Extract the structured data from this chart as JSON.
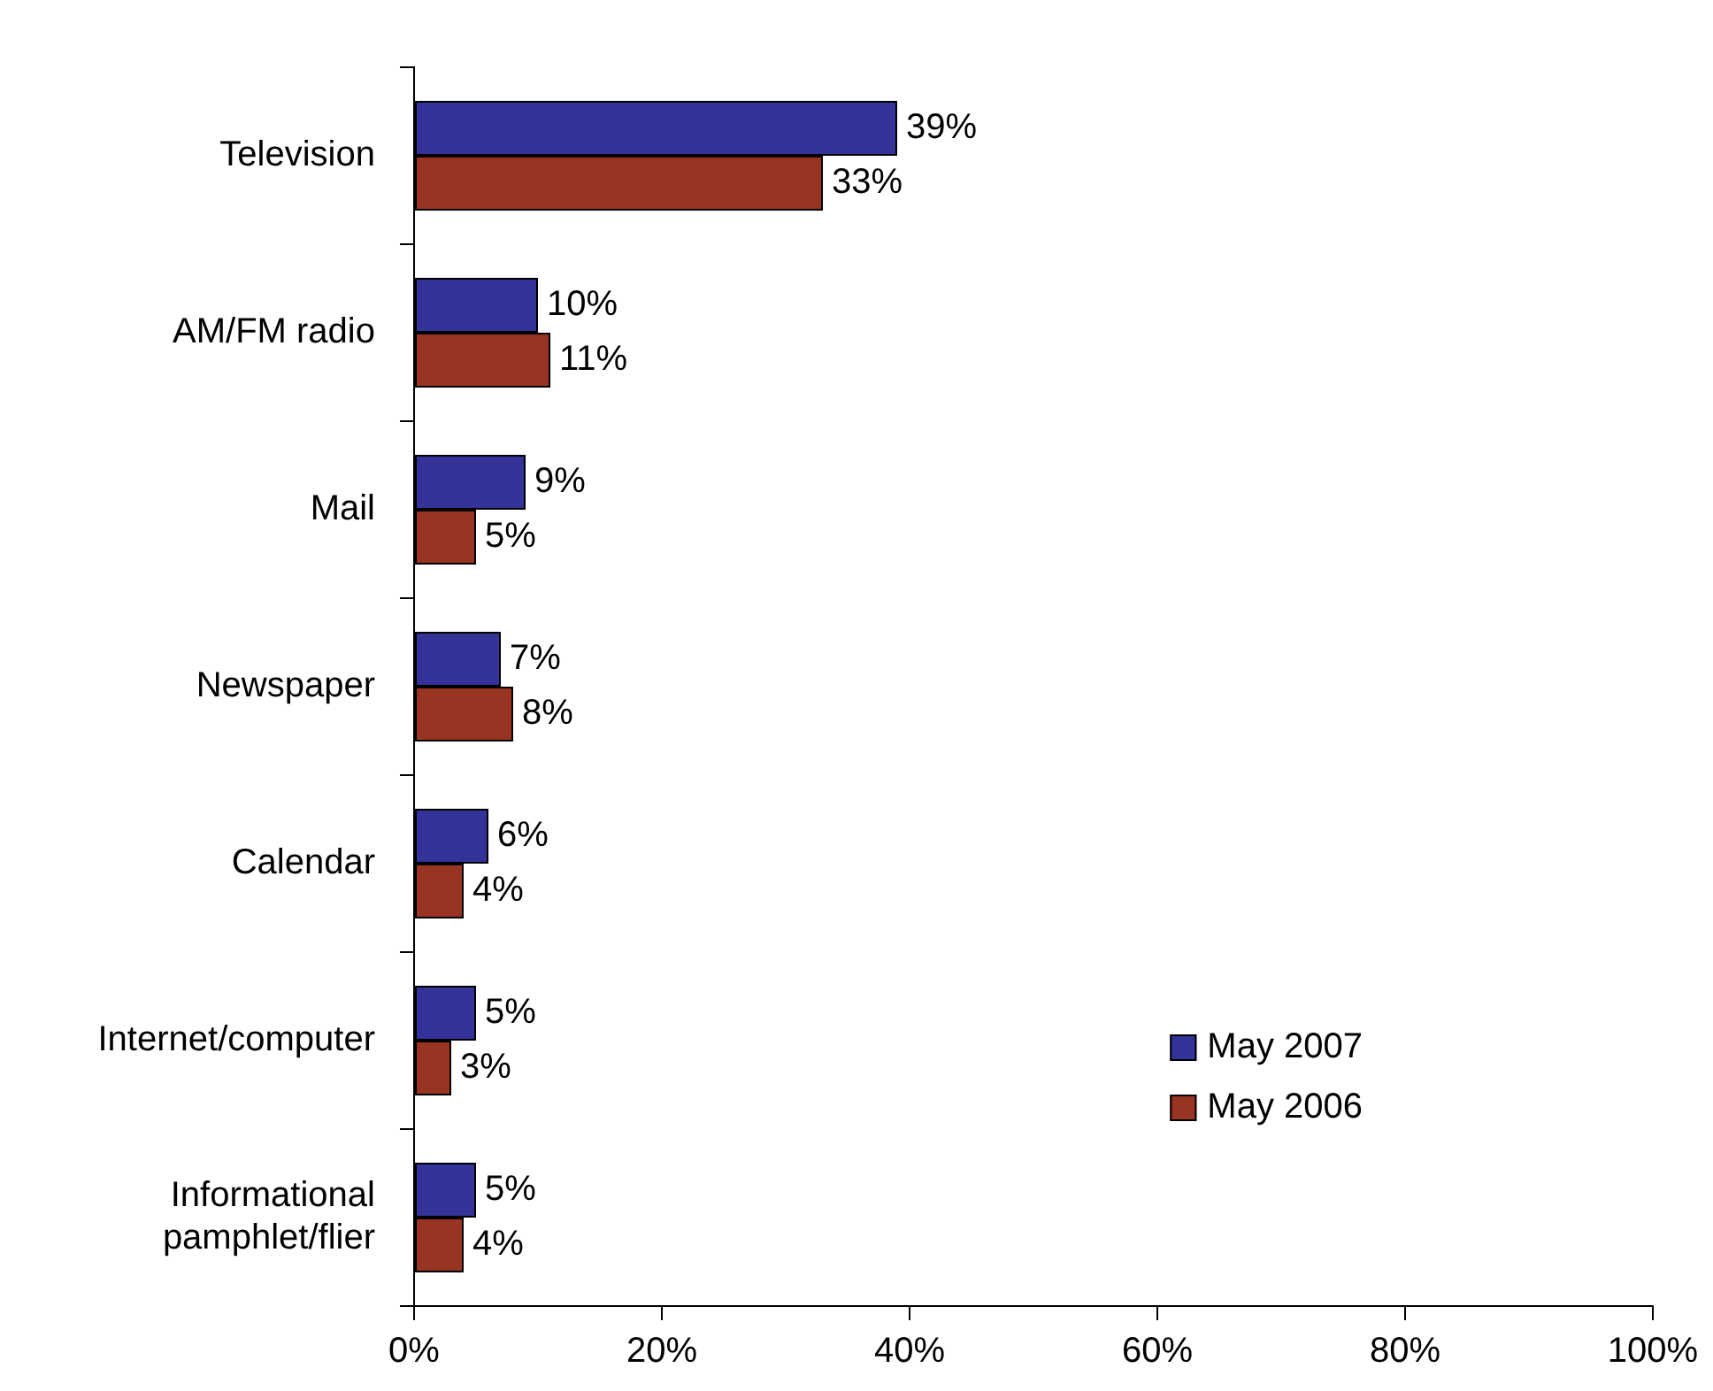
{
  "chart_data": {
    "type": "bar",
    "orientation": "horizontal",
    "categories": [
      "Television",
      "AM/FM radio",
      "Mail",
      "Newspaper",
      "Calendar",
      "Internet/computer",
      "Informational pamphlet/flier"
    ],
    "series": [
      {
        "name": "May 2007",
        "color": "#333399",
        "values": [
          39,
          10,
          9,
          7,
          6,
          5,
          5
        ],
        "value_labels": [
          "39%",
          "10%",
          "9%",
          "7%",
          "6%",
          "5%",
          "5%"
        ]
      },
      {
        "name": "May 2006",
        "color": "#993322",
        "values": [
          33,
          11,
          5,
          8,
          4,
          3,
          4
        ],
        "value_labels": [
          "33%",
          "11%",
          "5%",
          "8%",
          "4%",
          "3%",
          "4%"
        ]
      }
    ],
    "xlim": [
      0,
      100
    ],
    "xticks": [
      {
        "value": 0,
        "label": "0%"
      },
      {
        "value": 20,
        "label": "20%"
      },
      {
        "value": 40,
        "label": "40%"
      },
      {
        "value": 60,
        "label": "60%"
      },
      {
        "value": 80,
        "label": "80%"
      },
      {
        "value": 100,
        "label": "100%"
      }
    ],
    "grid": false,
    "legend": "bottom right"
  }
}
